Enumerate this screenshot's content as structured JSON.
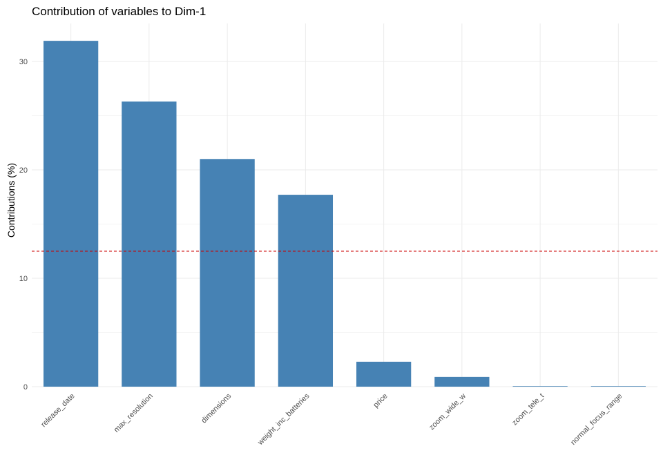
{
  "chart_data": {
    "type": "bar",
    "title": "Contribution of variables to Dim-1",
    "xlabel": "",
    "ylabel": "Contributions (%)",
    "categories": [
      "release_date",
      "max_resolution",
      "dimensions",
      "weight_inc_batteries",
      "price",
      "zoom_wide_w",
      "zoom_tele_t",
      "normal_focus_range"
    ],
    "values": [
      31.9,
      26.3,
      21.0,
      17.7,
      2.3,
      0.9,
      0.05,
      0.05
    ],
    "ylim": [
      0,
      33.5
    ],
    "yticks": [
      0,
      10,
      20,
      30
    ],
    "reference_line": {
      "value": 12.5,
      "style": "dashed",
      "color": "#cc0000"
    },
    "bar_color": "#4682B4",
    "grid": true,
    "legend": "none"
  }
}
